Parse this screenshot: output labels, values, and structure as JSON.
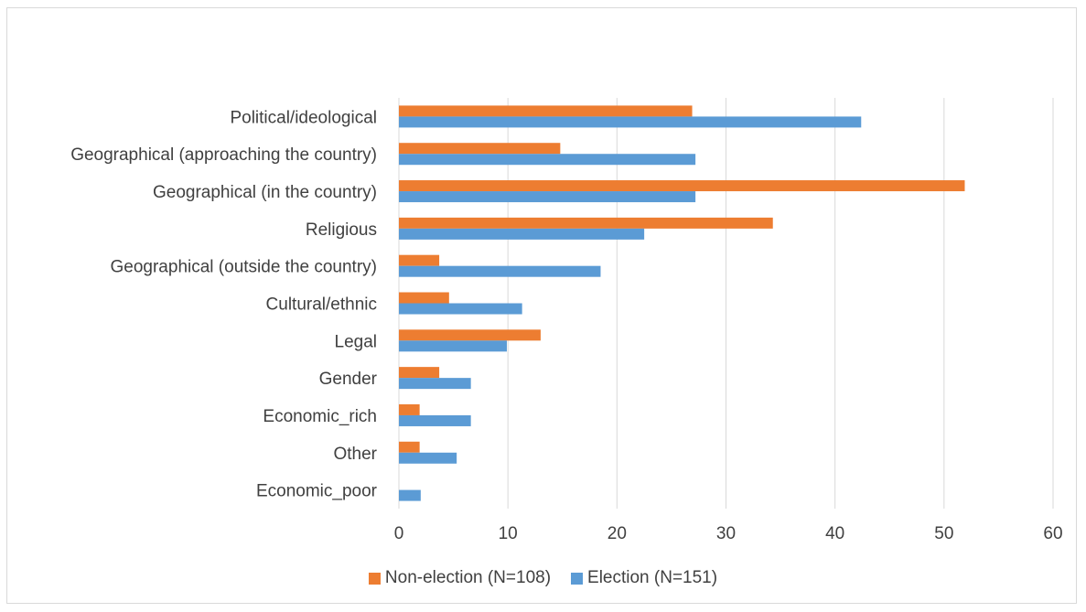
{
  "chart_data": {
    "type": "bar",
    "orientation": "horizontal",
    "categories": [
      "Political/ideological",
      "Geographical (approaching the country)",
      "Geographical (in the country)",
      "Religious",
      "Geographical (outside the country)",
      "Cultural/ethnic",
      "Legal",
      "Gender",
      "Economic_rich",
      "Other",
      "Economic_poor"
    ],
    "series": [
      {
        "name": "Non-election (N=108)",
        "color": "#ED7D31",
        "values": [
          26.9,
          14.8,
          51.9,
          34.3,
          3.7,
          4.6,
          13.0,
          3.7,
          1.9,
          1.9,
          0
        ]
      },
      {
        "name": "Election (N=151)",
        "color": "#5B9BD5",
        "values": [
          42.4,
          27.2,
          27.2,
          22.5,
          18.5,
          11.3,
          9.9,
          6.6,
          6.6,
          5.3,
          2.0
        ]
      }
    ],
    "xlim": [
      0,
      60
    ],
    "xticks": [
      "0",
      "10",
      "20",
      "30",
      "40",
      "50",
      "60"
    ],
    "grid": "vertical",
    "legend_position": "bottom"
  }
}
